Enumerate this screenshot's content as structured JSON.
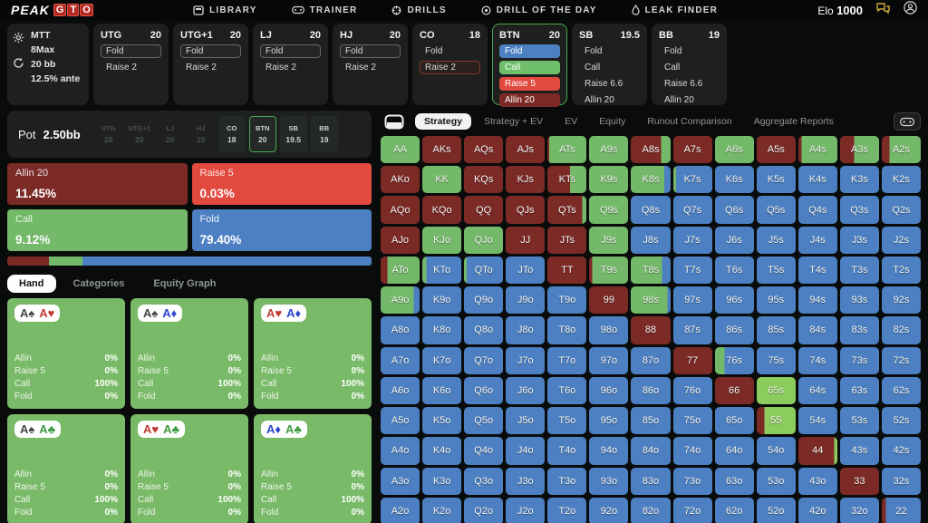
{
  "brand": {
    "peak": "PEAK",
    "gto_letters": [
      "G",
      "T",
      "O"
    ]
  },
  "nav": {
    "items": [
      "LIBRARY",
      "TRAINER",
      "DRILLS",
      "DRILL OF THE DAY",
      "LEAK FINDER"
    ],
    "elo_label": "Elo",
    "elo_value": "1000"
  },
  "settings": {
    "lines": [
      "MTT",
      "8Max",
      "20 bb",
      "12.5% ante"
    ]
  },
  "positions": [
    {
      "name": "UTG",
      "stack": "20",
      "selected": false,
      "actions": [
        {
          "label": "Fold",
          "style": "outline"
        },
        {
          "label": "Raise 2",
          "style": "plain"
        }
      ]
    },
    {
      "name": "UTG+1",
      "stack": "20",
      "selected": false,
      "actions": [
        {
          "label": "Fold",
          "style": "outline"
        },
        {
          "label": "Raise 2",
          "style": "plain"
        }
      ]
    },
    {
      "name": "LJ",
      "stack": "20",
      "selected": false,
      "actions": [
        {
          "label": "Fold",
          "style": "outline"
        },
        {
          "label": "Raise 2",
          "style": "plain"
        }
      ]
    },
    {
      "name": "HJ",
      "stack": "20",
      "selected": false,
      "actions": [
        {
          "label": "Fold",
          "style": "outline"
        },
        {
          "label": "Raise 2",
          "style": "plain"
        }
      ]
    },
    {
      "name": "CO",
      "stack": "18",
      "selected": false,
      "actions": [
        {
          "label": "Fold",
          "style": "plain"
        },
        {
          "label": "Raise 2",
          "style": "outline-red"
        }
      ]
    },
    {
      "name": "BTN",
      "stack": "20",
      "selected": true,
      "actions": [
        {
          "label": "Fold",
          "style": "fold"
        },
        {
          "label": "Call",
          "style": "call"
        },
        {
          "label": "Raise 5",
          "style": "raise"
        },
        {
          "label": "Allin 20",
          "style": "allin"
        }
      ]
    },
    {
      "name": "SB",
      "stack": "19.5",
      "selected": false,
      "actions": [
        {
          "label": "Fold",
          "style": "plain"
        },
        {
          "label": "Call",
          "style": "plain"
        },
        {
          "label": "Raise 6.6",
          "style": "plain"
        },
        {
          "label": "Allin 20",
          "style": "plain"
        }
      ]
    },
    {
      "name": "BB",
      "stack": "19",
      "selected": false,
      "actions": [
        {
          "label": "Fold",
          "style": "plain"
        },
        {
          "label": "Call",
          "style": "plain"
        },
        {
          "label": "Raise 6.6",
          "style": "plain"
        },
        {
          "label": "Allin 20",
          "style": "plain"
        }
      ]
    }
  ],
  "pot": {
    "label": "Pot",
    "value": "2.50bb",
    "chips": [
      {
        "pos": "UTG",
        "stack": "20",
        "state": "dim"
      },
      {
        "pos": "UTG+1",
        "stack": "20",
        "state": "dim"
      },
      {
        "pos": "LJ",
        "stack": "20",
        "state": "dim"
      },
      {
        "pos": "HJ",
        "stack": "20",
        "state": "dim"
      },
      {
        "pos": "CO",
        "stack": "18",
        "state": "normal"
      },
      {
        "pos": "BTN",
        "stack": "20",
        "state": "active"
      },
      {
        "pos": "SB",
        "stack": "19.5",
        "state": "normal"
      },
      {
        "pos": "BB",
        "stack": "19",
        "state": "normal"
      }
    ]
  },
  "action_buttons": [
    {
      "label": "Allin 20",
      "pct": "11.45%",
      "color": "d"
    },
    {
      "label": "Raise 5",
      "pct": "0.03%",
      "color": "r"
    },
    {
      "label": "Call",
      "pct": "9.12%",
      "color": "g"
    },
    {
      "label": "Fold",
      "pct": "79.40%",
      "color": "b"
    }
  ],
  "freq_bar": [
    {
      "color": "d",
      "width": 11.45
    },
    {
      "color": "r",
      "width": 0.03
    },
    {
      "color": "g",
      "width": 9.12
    },
    {
      "color": "b",
      "width": 79.4
    }
  ],
  "left_tabs": [
    {
      "label": "Hand",
      "active": true
    },
    {
      "label": "Categories",
      "active": false
    },
    {
      "label": "Equity Graph",
      "active": false
    }
  ],
  "combo_stats": [
    [
      "Allin",
      "0%"
    ],
    [
      "Raise 5",
      "0%"
    ],
    [
      "Call",
      "100%"
    ],
    [
      "Fold",
      "0%"
    ]
  ],
  "combos": [
    [
      [
        "A",
        "s"
      ],
      [
        "A",
        "h"
      ]
    ],
    [
      [
        "A",
        "s"
      ],
      [
        "A",
        "d"
      ]
    ],
    [
      [
        "A",
        "h"
      ],
      [
        "A",
        "d"
      ]
    ],
    [
      [
        "A",
        "s"
      ],
      [
        "A",
        "c"
      ]
    ],
    [
      [
        "A",
        "h"
      ],
      [
        "A",
        "c"
      ]
    ],
    [
      [
        "A",
        "d"
      ],
      [
        "A",
        "c"
      ]
    ]
  ],
  "suit_symbols": {
    "s": "♠",
    "h": "♥",
    "d": "♦",
    "c": "♣"
  },
  "suit_colors": {
    "s": "#41474a",
    "h": "#bf3a30",
    "d": "#2d46cb",
    "c": "#3d9a3e"
  },
  "grid_tabs": [
    {
      "label": "Strategy",
      "active": true
    },
    {
      "label": "Strategy + EV",
      "active": false
    },
    {
      "label": "EV",
      "active": false
    },
    {
      "label": "Equity",
      "active": false
    },
    {
      "label": "Runout Comparison",
      "active": false
    },
    {
      "label": "Aggregate Reports",
      "active": false
    }
  ],
  "colors": {
    "g": "#74b869",
    "G": "#8ccb5e",
    "b": "#4d80c2",
    "r": "#e2493f",
    "d": "#7b2a26"
  },
  "grid": {
    "rows": [
      [
        [
          "AA",
          "g"
        ],
        [
          "AKs",
          "d"
        ],
        [
          "AQs",
          "d"
        ],
        [
          "AJs",
          "d"
        ],
        [
          "ATs",
          "d5 g95"
        ],
        [
          "A9s",
          "g"
        ],
        [
          "A8s",
          "d76 g24"
        ],
        [
          "A7s",
          "d"
        ],
        [
          "A6s",
          "g"
        ],
        [
          "A5s",
          "d"
        ],
        [
          "A4s",
          "d8 g92"
        ],
        [
          "A3s",
          "d36 g64"
        ],
        [
          "A2s",
          "d20 g80"
        ]
      ],
      [
        [
          "AKo",
          "d"
        ],
        [
          "KK",
          "g"
        ],
        [
          "KQs",
          "d"
        ],
        [
          "KJs",
          "d"
        ],
        [
          "KTs",
          "d58 g42"
        ],
        [
          "K9s",
          "g"
        ],
        [
          "K8s",
          "g84 b16"
        ],
        [
          "K7s",
          "g7 b93"
        ],
        [
          "K6s",
          "b"
        ],
        [
          "K5s",
          "b"
        ],
        [
          "K4s",
          "b"
        ],
        [
          "K3s",
          "b"
        ],
        [
          "K2s",
          "b"
        ]
      ],
      [
        [
          "AQo",
          "d"
        ],
        [
          "KQo",
          "d"
        ],
        [
          "QQ",
          "d"
        ],
        [
          "QJs",
          "d"
        ],
        [
          "QTs",
          "d90 g10"
        ],
        [
          "Q9s",
          "g"
        ],
        [
          "Q8s",
          "b"
        ],
        [
          "Q7s",
          "b"
        ],
        [
          "Q6s",
          "b"
        ],
        [
          "Q5s",
          "b"
        ],
        [
          "Q4s",
          "b"
        ],
        [
          "Q3s",
          "b"
        ],
        [
          "Q2s",
          "b"
        ]
      ],
      [
        [
          "AJo",
          "d"
        ],
        [
          "KJo",
          "g"
        ],
        [
          "QJo",
          "g"
        ],
        [
          "JJ",
          "d"
        ],
        [
          "JTs",
          "d"
        ],
        [
          "J9s",
          "g"
        ],
        [
          "J8s",
          "b"
        ],
        [
          "J7s",
          "b"
        ],
        [
          "J6s",
          "b"
        ],
        [
          "J5s",
          "b"
        ],
        [
          "J4s",
          "b"
        ],
        [
          "J3s",
          "b"
        ],
        [
          "J2s",
          "b"
        ]
      ],
      [
        [
          "ATo",
          "d17 g83"
        ],
        [
          "KTo",
          "g10 b90"
        ],
        [
          "QTo",
          "g7 b93"
        ],
        [
          "JTo",
          "b"
        ],
        [
          "TT",
          "d"
        ],
        [
          "T9s",
          "d8 g92"
        ],
        [
          "T8s",
          "g78 b22"
        ],
        [
          "T7s",
          "b"
        ],
        [
          "T6s",
          "b"
        ],
        [
          "T5s",
          "b"
        ],
        [
          "T4s",
          "b"
        ],
        [
          "T3s",
          "b"
        ],
        [
          "T2s",
          "b"
        ]
      ],
      [
        [
          "A9o",
          "g85 b15"
        ],
        [
          "K9o",
          "b"
        ],
        [
          "Q9o",
          "b"
        ],
        [
          "J9o",
          "b"
        ],
        [
          "T9o",
          "b"
        ],
        [
          "99",
          "d"
        ],
        [
          "98s",
          "g92 b8"
        ],
        [
          "97s",
          "b"
        ],
        [
          "96s",
          "b"
        ],
        [
          "95s",
          "b"
        ],
        [
          "94s",
          "b"
        ],
        [
          "93s",
          "b"
        ],
        [
          "92s",
          "b"
        ]
      ],
      [
        [
          "A8o",
          "b"
        ],
        [
          "K8o",
          "b"
        ],
        [
          "Q8o",
          "b"
        ],
        [
          "J8o",
          "b"
        ],
        [
          "T8o",
          "b"
        ],
        [
          "98o",
          "b"
        ],
        [
          "88",
          "d"
        ],
        [
          "87s",
          "b"
        ],
        [
          "86s",
          "b"
        ],
        [
          "85s",
          "b"
        ],
        [
          "84s",
          "b"
        ],
        [
          "83s",
          "b"
        ],
        [
          "82s",
          "b"
        ]
      ],
      [
        [
          "A7o",
          "b"
        ],
        [
          "K7o",
          "b"
        ],
        [
          "Q7o",
          "b"
        ],
        [
          "J7o",
          "b"
        ],
        [
          "T7o",
          "b"
        ],
        [
          "97o",
          "b"
        ],
        [
          "87o",
          "b"
        ],
        [
          "77",
          "d"
        ],
        [
          "76s",
          "g25 b75"
        ],
        [
          "75s",
          "b"
        ],
        [
          "74s",
          "b"
        ],
        [
          "73s",
          "b"
        ],
        [
          "72s",
          "b"
        ]
      ],
      [
        [
          "A6o",
          "b"
        ],
        [
          "K6o",
          "b"
        ],
        [
          "Q6o",
          "b"
        ],
        [
          "J6o",
          "b"
        ],
        [
          "T6o",
          "b"
        ],
        [
          "96o",
          "b"
        ],
        [
          "86o",
          "b"
        ],
        [
          "76o",
          "b"
        ],
        [
          "66",
          "d"
        ],
        [
          "65s",
          "G"
        ],
        [
          "64s",
          "b"
        ],
        [
          "63s",
          "b"
        ],
        [
          "62s",
          "b"
        ]
      ],
      [
        [
          "A5o",
          "b"
        ],
        [
          "K5o",
          "b"
        ],
        [
          "Q5o",
          "b"
        ],
        [
          "J5o",
          "b"
        ],
        [
          "T5o",
          "b"
        ],
        [
          "95o",
          "b"
        ],
        [
          "85o",
          "b"
        ],
        [
          "75o",
          "b"
        ],
        [
          "65o",
          "b"
        ],
        [
          "55",
          "d20 G80"
        ],
        [
          "54s",
          "b"
        ],
        [
          "53s",
          "b"
        ],
        [
          "52s",
          "b"
        ]
      ],
      [
        [
          "A4o",
          "b"
        ],
        [
          "K4o",
          "b"
        ],
        [
          "Q4o",
          "b"
        ],
        [
          "J4o",
          "b"
        ],
        [
          "T4o",
          "b"
        ],
        [
          "94o",
          "b"
        ],
        [
          "84o",
          "b"
        ],
        [
          "74o",
          "b"
        ],
        [
          "64o",
          "b"
        ],
        [
          "54o",
          "b"
        ],
        [
          "44",
          "d92 G8"
        ],
        [
          "43s",
          "b"
        ],
        [
          "42s",
          "b"
        ]
      ],
      [
        [
          "A3o",
          "b"
        ],
        [
          "K3o",
          "b"
        ],
        [
          "Q3o",
          "b"
        ],
        [
          "J3o",
          "b"
        ],
        [
          "T3o",
          "b"
        ],
        [
          "93o",
          "b"
        ],
        [
          "83o",
          "b"
        ],
        [
          "73o",
          "b"
        ],
        [
          "63o",
          "b"
        ],
        [
          "53o",
          "b"
        ],
        [
          "43o",
          "b"
        ],
        [
          "33",
          "d"
        ],
        [
          "32s",
          "b"
        ]
      ],
      [
        [
          "A2o",
          "b"
        ],
        [
          "K2o",
          "b"
        ],
        [
          "Q2o",
          "b"
        ],
        [
          "J2o",
          "b"
        ],
        [
          "T2o",
          "b"
        ],
        [
          "92o",
          "b"
        ],
        [
          "82o",
          "b"
        ],
        [
          "72o",
          "b"
        ],
        [
          "62o",
          "b"
        ],
        [
          "52o",
          "b"
        ],
        [
          "42o",
          "b"
        ],
        [
          "32o",
          "b"
        ],
        [
          "22",
          "d10 b90"
        ]
      ]
    ]
  }
}
